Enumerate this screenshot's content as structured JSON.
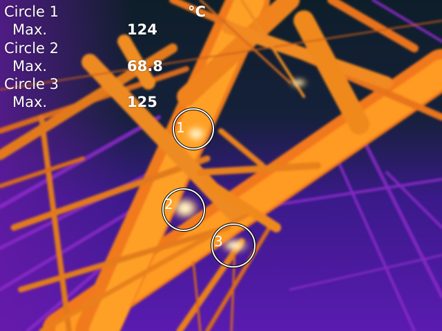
{
  "unit": "°C",
  "measurements": [
    {
      "name": "Circle 1",
      "stat": "Max.",
      "value": "124",
      "marker": "1"
    },
    {
      "name": "Circle 2",
      "stat": "Max.",
      "value": "68.8",
      "marker": "2"
    },
    {
      "name": "Circle 3",
      "stat": "Max.",
      "value": "125",
      "marker": "3"
    }
  ],
  "colors": {
    "background_dark": "#0f1f2a",
    "sky_purple": "#4a16a8",
    "hot_orange": "#ff9a1e",
    "hottest_white": "#fff8e0",
    "overlay_text": "#ffffff"
  }
}
